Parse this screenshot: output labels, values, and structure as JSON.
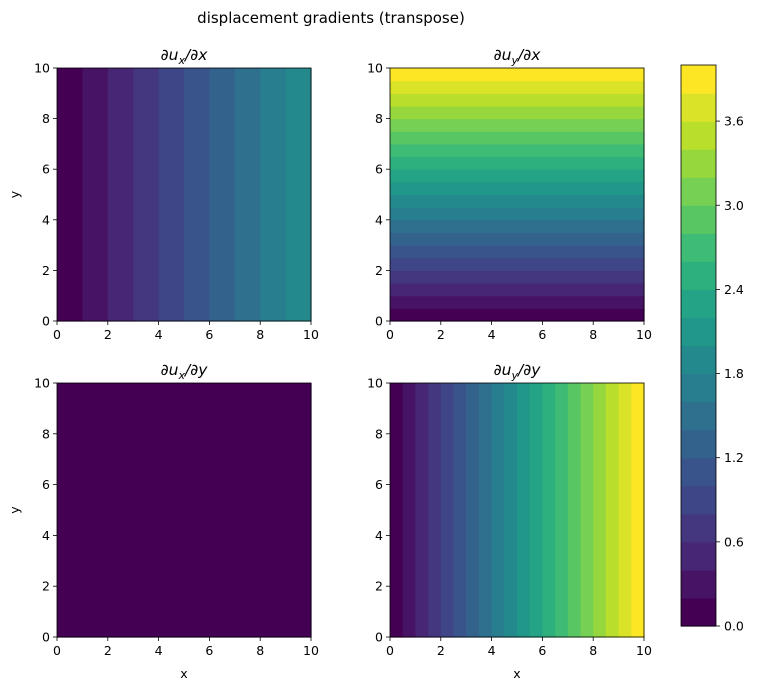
{
  "figure": {
    "suptitle": "displacement gradients (transpose)"
  },
  "colormap": {
    "name": "viridis",
    "stops": [
      "#440154",
      "#482878",
      "#3e4989",
      "#31688e",
      "#26828e",
      "#1f9e89",
      "#35b779",
      "#6ece58",
      "#b5de2b",
      "#fde725"
    ]
  },
  "colorbar": {
    "levels_min": 0.0,
    "levels_max": 4.0,
    "levels_count": 20,
    "ticks": [
      "0.0",
      "0.6",
      "1.2",
      "1.8",
      "2.4",
      "3.0",
      "3.6"
    ]
  },
  "chart_data": [
    {
      "type": "heatmap",
      "panel": "top-left",
      "title_base": "∂u",
      "title_sub": "x",
      "title_tail": "/∂x",
      "xlim": [
        0,
        10
      ],
      "ylim": [
        0,
        10
      ],
      "xticks": [
        "0",
        "2",
        "4",
        "6",
        "8",
        "10"
      ],
      "yticks": [
        "0",
        "2",
        "4",
        "6",
        "8",
        "10"
      ],
      "xlabel": "",
      "ylabel": "y",
      "varies_along": "x",
      "bands": [
        0.1,
        0.3,
        0.5,
        0.7,
        0.9,
        1.1,
        1.3,
        1.5,
        1.7,
        1.9
      ]
    },
    {
      "type": "heatmap",
      "panel": "top-right",
      "title_base": "∂u",
      "title_sub": "y",
      "title_tail": "/∂x",
      "xlim": [
        0,
        10
      ],
      "ylim": [
        0,
        10
      ],
      "xticks": [
        "0",
        "2",
        "4",
        "6",
        "8",
        "10"
      ],
      "yticks": [
        "0",
        "2",
        "4",
        "6",
        "8",
        "10"
      ],
      "xlabel": "",
      "ylabel": "",
      "varies_along": "y",
      "bands": [
        0.1,
        0.3,
        0.5,
        0.7,
        0.9,
        1.1,
        1.3,
        1.5,
        1.7,
        1.9,
        2.1,
        2.3,
        2.5,
        2.7,
        2.9,
        3.1,
        3.3,
        3.5,
        3.7,
        3.9
      ]
    },
    {
      "type": "heatmap",
      "panel": "bottom-left",
      "title_base": "∂u",
      "title_sub": "x",
      "title_tail": "/∂y",
      "xlim": [
        0,
        10
      ],
      "ylim": [
        0,
        10
      ],
      "xticks": [
        "0",
        "2",
        "4",
        "6",
        "8",
        "10"
      ],
      "yticks": [
        "0",
        "2",
        "4",
        "6",
        "8",
        "10"
      ],
      "xlabel": "x",
      "ylabel": "y",
      "varies_along": "x",
      "bands": [
        0.1
      ]
    },
    {
      "type": "heatmap",
      "panel": "bottom-right",
      "title_base": "∂u",
      "title_sub": "y",
      "title_tail": "/∂y",
      "xlim": [
        0,
        10
      ],
      "ylim": [
        0,
        10
      ],
      "xticks": [
        "0",
        "2",
        "4",
        "6",
        "8",
        "10"
      ],
      "yticks": [
        "0",
        "2",
        "4",
        "6",
        "8",
        "10"
      ],
      "xlabel": "x",
      "ylabel": "",
      "varies_along": "x",
      "bands": [
        0.1,
        0.3,
        0.5,
        0.7,
        0.9,
        1.1,
        1.3,
        1.5,
        1.7,
        1.9,
        2.1,
        2.3,
        2.5,
        2.7,
        2.9,
        3.1,
        3.3,
        3.5,
        3.7,
        3.9
      ]
    }
  ]
}
